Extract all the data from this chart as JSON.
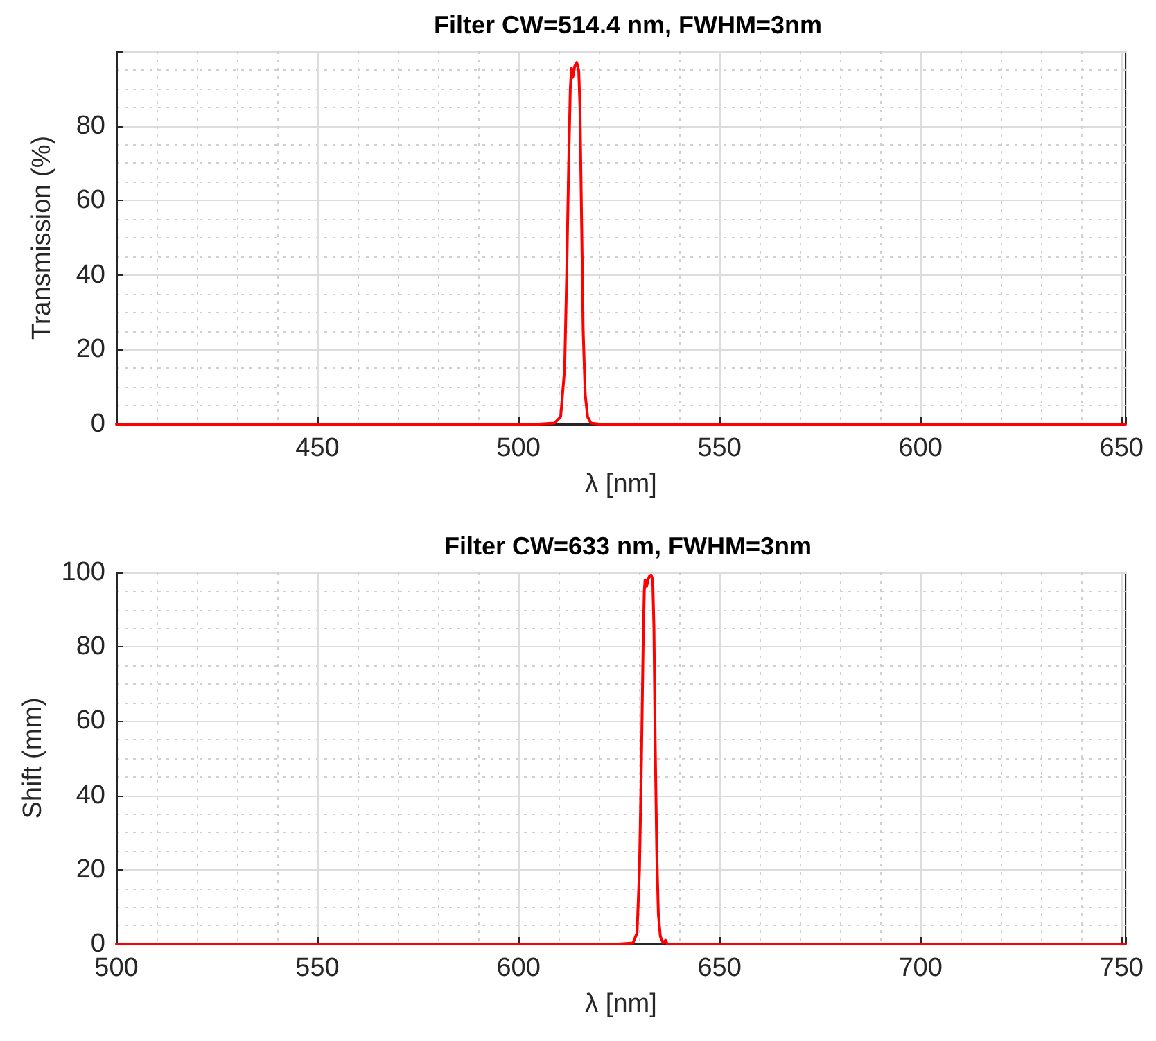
{
  "chart_data": [
    {
      "type": "line",
      "title": "Filter CW=514.4 nm, FWHM=3nm",
      "xlabel": "λ [nm]",
      "ylabel": "Transmission (%)",
      "xlim": [
        400,
        651
      ],
      "xticks": [
        450,
        500,
        550,
        600,
        650
      ],
      "ylim": [
        0,
        100
      ],
      "yticks": [
        0,
        20,
        40,
        60,
        80
      ],
      "grid": true,
      "marker": "none",
      "line_style": "solid",
      "series": [
        {
          "color": "#ff0000",
          "x": [
            400,
            505,
            509,
            510.5,
            511.5,
            512,
            512.5,
            512.9,
            513.2,
            513.5,
            514,
            514.5,
            515,
            515.3,
            515.7,
            516.1,
            516.6,
            517.2,
            518,
            520,
            651
          ],
          "values": [
            0,
            0,
            0.3,
            2,
            15,
            40,
            70,
            90,
            95.4,
            93,
            96,
            97,
            94.8,
            85,
            55,
            25,
            8,
            2,
            0.3,
            0,
            0
          ]
        }
      ]
    },
    {
      "type": "line",
      "title": "Filter CW=633 nm, FWHM=3nm",
      "xlabel": "λ [nm]",
      "ylabel": "Shift (mm)",
      "xlim": [
        500,
        751
      ],
      "xticks": [
        500,
        550,
        600,
        650,
        700,
        750
      ],
      "ylim": [
        0,
        100
      ],
      "yticks": [
        0,
        20,
        40,
        60,
        80,
        100
      ],
      "grid": true,
      "marker": "none",
      "line_style": "solid",
      "series": [
        {
          "color": "#ff0000",
          "x": [
            500,
            625,
            628.5,
            629.5,
            630.1,
            630.6,
            631,
            631.3,
            631.5,
            631.9,
            632.2,
            632.6,
            633,
            633.4,
            633.7,
            634,
            634.4,
            634.8,
            635.3,
            636,
            636.6,
            637,
            751
          ],
          "values": [
            0,
            0,
            0.3,
            3,
            20,
            50,
            80,
            95,
            98,
            96.3,
            98,
            99,
            99.3,
            98,
            85,
            55,
            25,
            8,
            2,
            0.3,
            1,
            0,
            0
          ]
        }
      ]
    }
  ]
}
